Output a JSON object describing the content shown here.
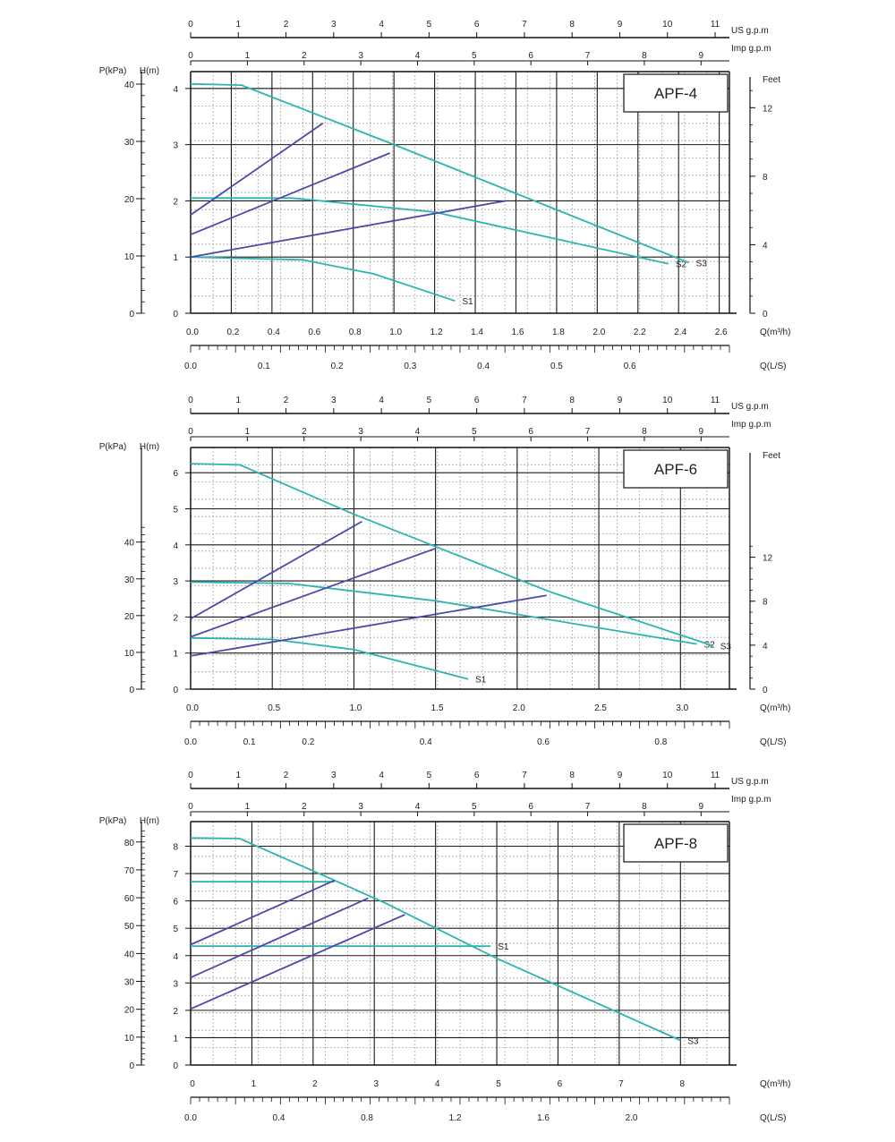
{
  "colors": {
    "curve": "#2bb5b0",
    "system": "#4a4aa8",
    "gridMajor": "#1a1a1a",
    "gridMinor": "#9a9a9a",
    "axis": "#111111"
  },
  "unit_labels": {
    "us_gpm": "US  g.p.m",
    "imp_gpm": "Imp  g.p.m",
    "pressure_kpa": "P(kPa)",
    "head_m": "H(m)",
    "flow_m3h": "Q(m³/h)",
    "flow_ls": "Q(L/S)",
    "feet": "Feet"
  },
  "chart_data": [
    {
      "type": "line",
      "title": "APF-4",
      "us_gpm_ticks": [
        "0",
        "1",
        "2",
        "3",
        "4",
        "5",
        "6",
        "7",
        "8",
        "9",
        "10",
        "11"
      ],
      "imp_gpm_ticks": [
        "0",
        "1",
        "2",
        "3",
        "4",
        "5",
        "6",
        "7",
        "8",
        "9"
      ],
      "q_m3h_ticks": [
        "0.0",
        "0.2",
        "0.4",
        "0.6",
        "0.8",
        "1.0",
        "1.2",
        "1.4",
        "1.6",
        "1.8",
        "2.0",
        "2.2",
        "2.4",
        "2.6"
      ],
      "q_ls_ticks": [
        "0.0",
        "0.1",
        "0.2",
        "0.3",
        "0.4",
        "0.5",
        "0.6"
      ],
      "h_ticks": [
        "0",
        "1",
        "2",
        "3",
        "4"
      ],
      "kpa_ticks": [
        "0",
        "10",
        "20",
        "30",
        "40"
      ],
      "feet_ticks": [
        "0",
        "4",
        "8",
        "12"
      ],
      "xlim": [
        0,
        2.65
      ],
      "ylim": [
        0,
        4.3
      ],
      "series": [
        {
          "name": "S1",
          "kind": "curve",
          "points": [
            [
              0,
              1.0
            ],
            [
              0.55,
              0.95
            ],
            [
              0.9,
              0.7
            ],
            [
              1.3,
              0.22
            ]
          ]
        },
        {
          "name": "S2",
          "kind": "curve",
          "points": [
            [
              0,
              2.05
            ],
            [
              0.5,
              2.05
            ],
            [
              1.2,
              1.8
            ],
            [
              2.35,
              0.88
            ]
          ]
        },
        {
          "name": "S3",
          "kind": "curve",
          "points": [
            [
              0,
              4.08
            ],
            [
              0.25,
              4.06
            ],
            [
              1.0,
              3.0
            ],
            [
              2.45,
              0.9
            ]
          ]
        },
        {
          "name": "",
          "kind": "system",
          "points": [
            [
              0,
              1.0
            ],
            [
              1.55,
              2.0
            ]
          ]
        },
        {
          "name": "",
          "kind": "system",
          "points": [
            [
              0,
              1.4
            ],
            [
              0.98,
              2.85
            ]
          ]
        },
        {
          "name": "",
          "kind": "system",
          "points": [
            [
              0,
              1.75
            ],
            [
              0.65,
              3.38
            ]
          ]
        }
      ]
    },
    {
      "type": "line",
      "title": "APF-6",
      "us_gpm_ticks": [
        "0",
        "1",
        "2",
        "3",
        "4",
        "5",
        "6",
        "7",
        "8",
        "9",
        "10",
        "11"
      ],
      "imp_gpm_ticks": [
        "0",
        "1",
        "2",
        "3",
        "4",
        "5",
        "6",
        "7",
        "8",
        "9"
      ],
      "q_m3h_ticks": [
        "0.0",
        "0.5",
        "1.0",
        "1.5",
        "2.0",
        "2.5",
        "3.0"
      ],
      "q_ls_ticks": [
        "0.0",
        "0.1",
        "0.2",
        "0.4",
        "0.6",
        "0.8"
      ],
      "h_ticks": [
        "0",
        "1",
        "2",
        "3",
        "4",
        "5",
        "6"
      ],
      "kpa_ticks": [
        "0",
        "10",
        "20",
        "30",
        "40"
      ],
      "feet_ticks": [
        "0",
        "4",
        "8",
        "12"
      ],
      "xlim": [
        0,
        3.3
      ],
      "ylim": [
        0,
        6.7
      ],
      "series": [
        {
          "name": "S1",
          "kind": "curve",
          "points": [
            [
              0,
              1.42
            ],
            [
              0.5,
              1.38
            ],
            [
              1.0,
              1.1
            ],
            [
              1.7,
              0.28
            ]
          ]
        },
        {
          "name": "S2",
          "kind": "curve",
          "points": [
            [
              0,
              2.97
            ],
            [
              0.6,
              2.93
            ],
            [
              1.5,
              2.45
            ],
            [
              3.1,
              1.25
            ]
          ]
        },
        {
          "name": "S3",
          "kind": "curve",
          "points": [
            [
              0,
              6.25
            ],
            [
              0.3,
              6.22
            ],
            [
              1.0,
              4.85
            ],
            [
              2.2,
              2.7
            ],
            [
              3.2,
              1.2
            ]
          ]
        },
        {
          "name": "",
          "kind": "system",
          "points": [
            [
              0,
              0.92
            ],
            [
              2.18,
              2.6
            ]
          ]
        },
        {
          "name": "",
          "kind": "system",
          "points": [
            [
              0,
              1.45
            ],
            [
              1.5,
              3.9
            ]
          ]
        },
        {
          "name": "",
          "kind": "system",
          "points": [
            [
              0,
              1.95
            ],
            [
              1.05,
              4.65
            ]
          ]
        }
      ]
    },
    {
      "type": "line",
      "title": "APF-8",
      "us_gpm_ticks": [
        "0",
        "1",
        "2",
        "3",
        "4",
        "5",
        "6",
        "7",
        "8",
        "9",
        "10",
        "11"
      ],
      "imp_gpm_ticks": [
        "0",
        "1",
        "2",
        "3",
        "4",
        "5",
        "6",
        "7",
        "8",
        "9"
      ],
      "q_m3h_ticks": [
        "0",
        "1",
        "2",
        "3",
        "4",
        "5",
        "6",
        "7",
        "8"
      ],
      "q_ls_ticks": [
        "0.0",
        "0.4",
        "0.8",
        "1.2",
        "1.6",
        "2.0"
      ],
      "h_ticks": [
        "0",
        "1",
        "2",
        "3",
        "4",
        "5",
        "6",
        "7",
        "8"
      ],
      "kpa_ticks": [
        "0",
        "10",
        "20",
        "30",
        "40",
        "50",
        "60",
        "70",
        "80"
      ],
      "feet_ticks": [],
      "xlim": [
        0,
        8.8
      ],
      "ylim": [
        0,
        8.9
      ],
      "series": [
        {
          "name": "S1",
          "kind": "curve",
          "points": [
            [
              0,
              4.35
            ],
            [
              4.9,
              4.35
            ]
          ]
        },
        {
          "name": "",
          "kind": "curve",
          "points": [
            [
              0,
              6.7
            ],
            [
              2.35,
              6.7
            ]
          ]
        },
        {
          "name": "S3",
          "kind": "curve",
          "points": [
            [
              0,
              8.3
            ],
            [
              0.8,
              8.28
            ],
            [
              2.4,
              6.7
            ],
            [
              3.2,
              5.9
            ],
            [
              5.0,
              3.9
            ],
            [
              8.0,
              0.9
            ]
          ]
        },
        {
          "name": "",
          "kind": "system",
          "points": [
            [
              0,
              2.05
            ],
            [
              3.5,
              5.5
            ]
          ]
        },
        {
          "name": "",
          "kind": "system",
          "points": [
            [
              0,
              3.2
            ],
            [
              2.9,
              6.1
            ]
          ]
        },
        {
          "name": "",
          "kind": "system",
          "points": [
            [
              0,
              4.4
            ],
            [
              2.35,
              6.75
            ]
          ]
        }
      ]
    }
  ]
}
